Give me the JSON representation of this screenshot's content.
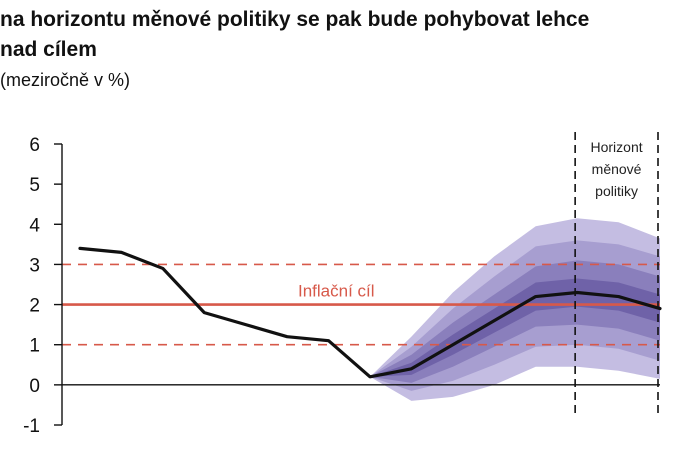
{
  "header": {
    "title_line1": "",
    "title_line2": "na horizontu měnové politiky se pak bude pohybovat lehce",
    "title_line3": "nad cílem",
    "unit": "(meziročně v %)"
  },
  "chart_data": {
    "type": "line",
    "title": "",
    "xlabel": "",
    "ylabel": "(meziročně v %)",
    "ylim": [
      -1,
      6
    ],
    "yticks": [
      -1,
      0,
      1,
      2,
      3,
      4,
      5,
      6
    ],
    "x_range": [
      0,
      14
    ],
    "grid": false,
    "series": [
      {
        "name": "",
        "color": "#111111",
        "x": [
          0,
          1,
          2,
          3,
          4,
          5,
          6,
          7,
          8,
          9,
          10,
          11,
          12,
          13,
          14
        ],
        "y": [
          3.4,
          3.3,
          2.9,
          1.8,
          1.5,
          1.2,
          1.1,
          0.2,
          0.4,
          1.0,
          1.6,
          2.2,
          2.3,
          2.2,
          1.9
        ]
      }
    ],
    "fan": {
      "x": [
        7,
        8,
        9,
        10,
        11,
        12,
        13,
        14
      ],
      "center": [
        0.2,
        0.4,
        1.0,
        1.6,
        2.2,
        2.3,
        2.2,
        1.9
      ],
      "half_widths": [
        [
          0.0,
          0.15,
          0.25,
          0.3,
          0.35,
          0.35,
          0.35,
          0.35
        ],
        [
          0.0,
          0.35,
          0.55,
          0.65,
          0.75,
          0.8,
          0.8,
          0.8
        ],
        [
          0.0,
          0.55,
          0.9,
          1.1,
          1.25,
          1.3,
          1.3,
          1.3
        ],
        [
          0.0,
          0.8,
          1.3,
          1.6,
          1.75,
          1.85,
          1.85,
          1.75
        ]
      ],
      "colors": [
        "#6f62a8",
        "#8a7fbc",
        "#a79ed0",
        "#c4bde2"
      ]
    },
    "inflation_target": {
      "value": 2,
      "label": "Inflační cíl",
      "color": "#d7594a"
    },
    "tolerance_band": {
      "lower": 1,
      "upper": 3,
      "color": "#d7594a",
      "style": "dashed"
    },
    "policy_horizon": {
      "x_start": 12,
      "x_end": 14,
      "label_lines": [
        "Horizont",
        "měnové",
        "politiky"
      ]
    }
  }
}
